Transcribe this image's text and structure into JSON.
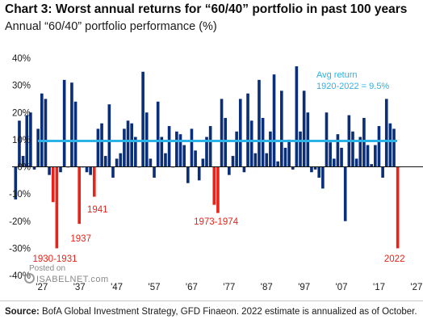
{
  "title": "Chart 3: Worst annual  returns for “60/40” portfolio in past 100 years",
  "subtitle": "Annual “60/40” portfolio performance (%)",
  "source_label": "Source:",
  "source_text": "  BofA Global Investment Strategy, GFD Finaeon. 2022  estimate is annualized  as of October.",
  "watermark": {
    "posted": "Posted on",
    "logo": "ISABELNET.com"
  },
  "colors": {
    "positive": "#0b2e78",
    "negative": "#e8231a",
    "avg_line": "#2bb2e6",
    "avg_text": "#2bb2e6",
    "annotation": "#e8231a"
  },
  "chart_data": {
    "type": "bar",
    "x": [
      1920,
      1921,
      1922,
      1923,
      1924,
      1925,
      1926,
      1927,
      1928,
      1929,
      1930,
      1931,
      1932,
      1933,
      1934,
      1935,
      1936,
      1937,
      1938,
      1939,
      1940,
      1941,
      1942,
      1943,
      1944,
      1945,
      1946,
      1947,
      1948,
      1949,
      1950,
      1951,
      1952,
      1953,
      1954,
      1955,
      1956,
      1957,
      1958,
      1959,
      1960,
      1961,
      1962,
      1963,
      1964,
      1965,
      1966,
      1967,
      1968,
      1969,
      1970,
      1971,
      1972,
      1973,
      1974,
      1975,
      1976,
      1977,
      1978,
      1979,
      1980,
      1981,
      1982,
      1983,
      1984,
      1985,
      1986,
      1987,
      1988,
      1989,
      1990,
      1991,
      1992,
      1993,
      1994,
      1995,
      1996,
      1997,
      1998,
      1999,
      2000,
      2001,
      2002,
      2003,
      2004,
      2005,
      2006,
      2007,
      2008,
      2009,
      2010,
      2011,
      2012,
      2013,
      2014,
      2015,
      2016,
      2017,
      2018,
      2019,
      2020,
      2021,
      2022
    ],
    "values": [
      -12,
      17,
      4,
      19,
      20,
      -1,
      14,
      27,
      25,
      -3,
      -13,
      -30,
      -2,
      32,
      0,
      31,
      24,
      -21,
      0,
      -2,
      -3,
      -11,
      14,
      16,
      4,
      23,
      -4,
      3,
      5,
      14,
      17,
      16,
      11,
      0,
      35,
      20,
      3,
      -4,
      24,
      11,
      5,
      15,
      0,
      13,
      12,
      8,
      -6,
      14,
      6,
      -5,
      3,
      11,
      15,
      -14,
      -17,
      25,
      18,
      -3,
      4,
      13,
      25,
      -2,
      27,
      17,
      5,
      32,
      18,
      5,
      13,
      34,
      2,
      28,
      7,
      10,
      -1,
      37,
      13,
      28,
      20,
      -2,
      -1,
      -4,
      -8,
      20,
      9,
      3,
      12,
      7,
      -20,
      19,
      13,
      3,
      11,
      18,
      8,
      1,
      8,
      15,
      -4,
      25,
      16,
      14,
      -30
    ],
    "annotations": [
      "1930-1931",
      "1937",
      "1941",
      "1973-1974",
      "2022"
    ],
    "average": {
      "label_line1": "Avg return",
      "label_line2": "1920-2022 = 9.5%",
      "value": 9.5
    },
    "yticks": [
      "40%",
      "30%",
      "20%",
      "10%",
      "0%",
      "-10%",
      "-20%",
      "-30%",
      "-40%"
    ],
    "ylim": [
      -40,
      40
    ],
    "xticks": [
      "'27",
      "'37",
      "'47",
      "'57",
      "'67",
      "'77",
      "'87",
      "'97",
      "'07",
      "'17",
      "'27"
    ],
    "xtick_years": [
      1927,
      1937,
      1947,
      1957,
      1967,
      1977,
      1987,
      1997,
      2007,
      2017,
      2027
    ],
    "grid": false,
    "legend": "none"
  }
}
